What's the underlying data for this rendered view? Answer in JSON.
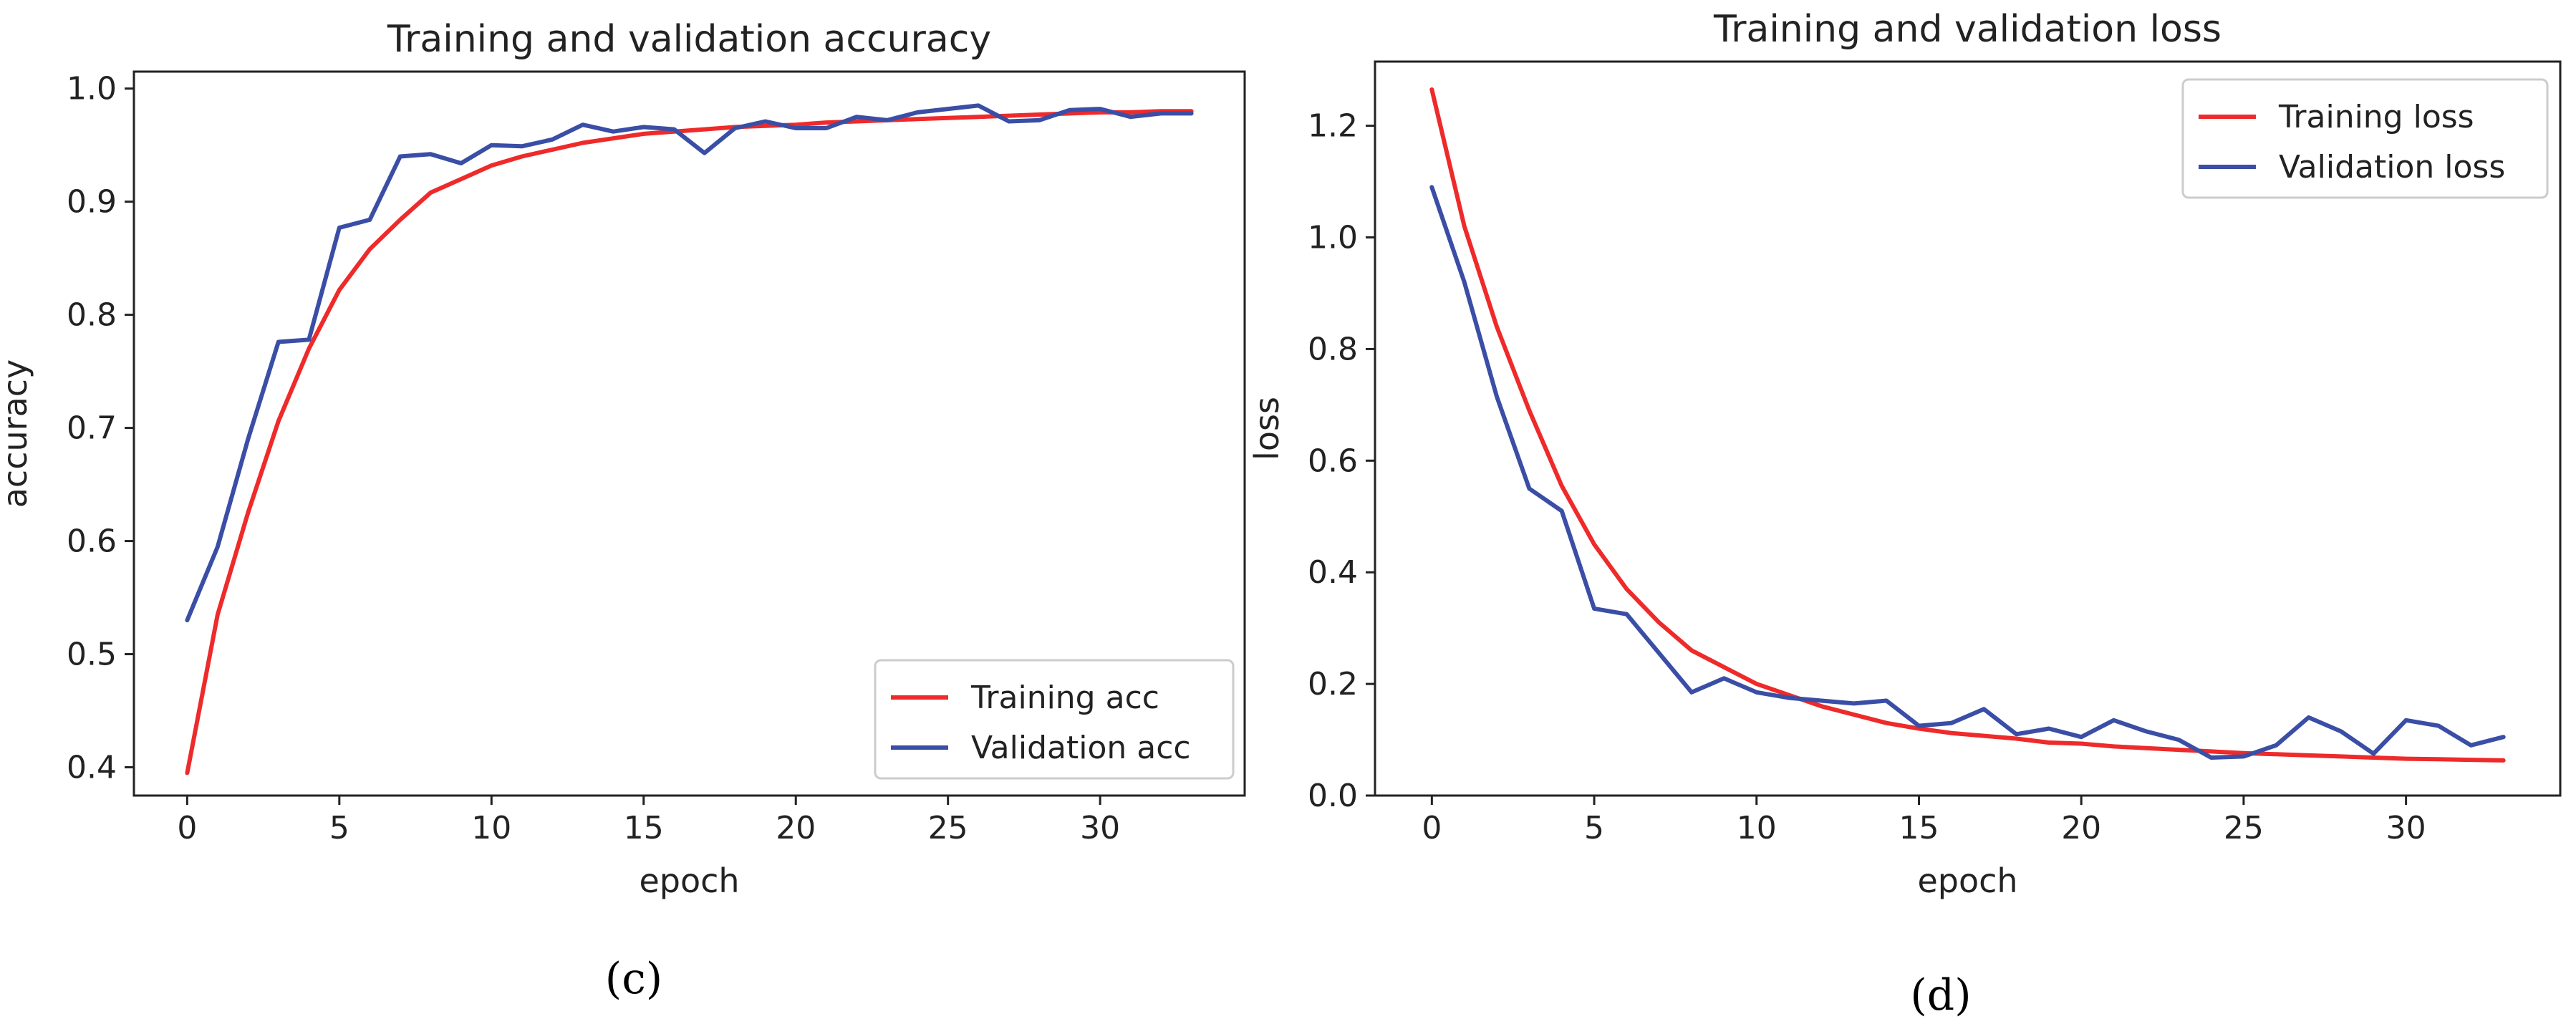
{
  "figure": {
    "panels": [
      {
        "label": "(c)"
      },
      {
        "label": "(d)"
      }
    ]
  },
  "chart_data": [
    {
      "type": "line",
      "title": "Training and validation accuracy",
      "xlabel": "epoch",
      "ylabel": "accuracy",
      "xlim": [
        -1.75,
        34.75
      ],
      "ylim": [
        0.375,
        1.015
      ],
      "xticks": [
        0,
        5,
        10,
        15,
        20,
        25,
        30
      ],
      "yticks": [
        0.4,
        0.5,
        0.6,
        0.7,
        0.8,
        0.9,
        1.0
      ],
      "ytick_labels": [
        "0.4",
        "0.5",
        "0.6",
        "0.7",
        "0.8",
        "0.9",
        "1.0"
      ],
      "legend_position": "bottom-right",
      "x": [
        0,
        1,
        2,
        3,
        4,
        5,
        6,
        7,
        8,
        9,
        10,
        11,
        12,
        13,
        14,
        15,
        16,
        17,
        18,
        19,
        20,
        21,
        22,
        23,
        24,
        25,
        26,
        27,
        28,
        29,
        30,
        31,
        32,
        33
      ],
      "series": [
        {
          "name": "Training acc",
          "color": "#ee2a2a",
          "values": [
            0.395,
            0.535,
            0.625,
            0.706,
            0.77,
            0.822,
            0.858,
            0.884,
            0.908,
            0.92,
            0.932,
            0.94,
            0.946,
            0.952,
            0.956,
            0.96,
            0.962,
            0.964,
            0.966,
            0.967,
            0.968,
            0.97,
            0.971,
            0.972,
            0.973,
            0.974,
            0.975,
            0.976,
            0.977,
            0.978,
            0.979,
            0.979,
            0.98,
            0.98
          ]
        },
        {
          "name": "Validation acc",
          "color": "#3a4ea6",
          "values": [
            0.53,
            0.595,
            0.69,
            0.776,
            0.778,
            0.877,
            0.884,
            0.94,
            0.942,
            0.934,
            0.95,
            0.949,
            0.955,
            0.968,
            0.962,
            0.966,
            0.964,
            0.943,
            0.965,
            0.971,
            0.965,
            0.965,
            0.975,
            0.972,
            0.979,
            0.982,
            0.985,
            0.971,
            0.972,
            0.981,
            0.982,
            0.975,
            0.978,
            0.978
          ]
        }
      ]
    },
    {
      "type": "line",
      "title": "Training and validation loss",
      "xlabel": "epoch",
      "ylabel": "loss",
      "xlim": [
        -1.75,
        34.75
      ],
      "ylim": [
        0.0,
        1.315
      ],
      "xticks": [
        0,
        5,
        10,
        15,
        20,
        25,
        30
      ],
      "yticks": [
        0.0,
        0.2,
        0.4,
        0.6,
        0.8,
        1.0,
        1.2
      ],
      "ytick_labels": [
        "0.0",
        "0.2",
        "0.4",
        "0.6",
        "0.8",
        "1.0",
        "1.2"
      ],
      "legend_position": "top-right",
      "x": [
        0,
        1,
        2,
        3,
        4,
        5,
        6,
        7,
        8,
        9,
        10,
        11,
        12,
        13,
        14,
        15,
        16,
        17,
        18,
        19,
        20,
        21,
        22,
        23,
        24,
        25,
        26,
        27,
        28,
        29,
        30,
        31,
        32,
        33
      ],
      "series": [
        {
          "name": "Training loss",
          "color": "#ee2a2a",
          "values": [
            1.265,
            1.02,
            0.84,
            0.69,
            0.555,
            0.45,
            0.37,
            0.31,
            0.26,
            0.23,
            0.2,
            0.18,
            0.16,
            0.145,
            0.13,
            0.12,
            0.112,
            0.107,
            0.102,
            0.095,
            0.093,
            0.088,
            0.085,
            0.082,
            0.079,
            0.076,
            0.074,
            0.072,
            0.07,
            0.068,
            0.066,
            0.065,
            0.064,
            0.063
          ]
        },
        {
          "name": "Validation loss",
          "color": "#3a4ea6",
          "values": [
            1.09,
            0.92,
            0.715,
            0.55,
            0.51,
            0.335,
            0.325,
            0.255,
            0.185,
            0.21,
            0.185,
            0.175,
            0.17,
            0.165,
            0.17,
            0.125,
            0.13,
            0.155,
            0.11,
            0.12,
            0.105,
            0.135,
            0.115,
            0.1,
            0.068,
            0.07,
            0.09,
            0.14,
            0.115,
            0.075,
            0.135,
            0.125,
            0.09,
            0.105
          ]
        }
      ]
    }
  ]
}
